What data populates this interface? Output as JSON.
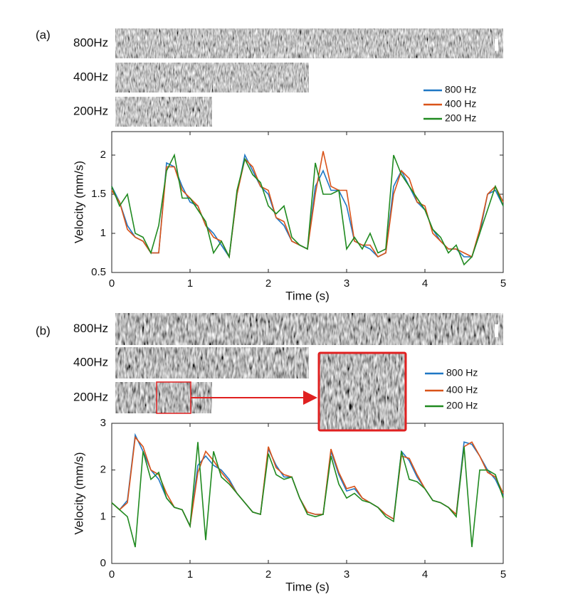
{
  "chart_data": [
    {
      "type": "line",
      "panel_label": "(a)",
      "kymograph_labels": [
        "800Hz",
        "400Hz",
        "200Hz"
      ],
      "xlabel": "Time (s)",
      "ylabel": "Velocity (mm/s)",
      "xlim": [
        0,
        5
      ],
      "ylim": [
        0.5,
        2.3
      ],
      "xticks": [
        0,
        1,
        2,
        3,
        4,
        5
      ],
      "yticks": [
        0.5,
        1,
        1.5,
        2
      ],
      "x": [
        0,
        0.1,
        0.2,
        0.3,
        0.4,
        0.5,
        0.6,
        0.7,
        0.8,
        0.9,
        1,
        1.1,
        1.2,
        1.3,
        1.4,
        1.5,
        1.6,
        1.7,
        1.8,
        1.9,
        2,
        2.1,
        2.2,
        2.3,
        2.4,
        2.5,
        2.6,
        2.7,
        2.8,
        2.9,
        3,
        3.1,
        3.2,
        3.3,
        3.4,
        3.5,
        3.6,
        3.7,
        3.8,
        3.9,
        4,
        4.1,
        4.2,
        4.3,
        4.4,
        4.5,
        4.6,
        4.7,
        4.8,
        4.9,
        5
      ],
      "series": [
        {
          "name": "800 Hz",
          "color": "#1f77c4",
          "values": [
            1.6,
            1.4,
            1.1,
            0.95,
            0.9,
            0.75,
            0.75,
            1.9,
            1.85,
            1.6,
            1.4,
            1.35,
            1.1,
            1.0,
            0.85,
            0.7,
            1.5,
            2.0,
            1.8,
            1.6,
            1.5,
            1.2,
            1.1,
            0.9,
            0.85,
            0.8,
            1.6,
            1.8,
            1.55,
            1.55,
            1.35,
            0.9,
            0.85,
            0.8,
            0.7,
            0.75,
            1.6,
            1.8,
            1.6,
            1.4,
            1.3,
            1.05,
            0.9,
            0.8,
            0.8,
            0.7,
            0.7,
            1.0,
            1.5,
            1.55,
            1.35
          ]
        },
        {
          "name": "400 Hz",
          "color": "#d95319",
          "values": [
            1.55,
            1.4,
            1.05,
            0.95,
            0.9,
            0.75,
            0.75,
            1.85,
            1.85,
            1.55,
            1.45,
            1.35,
            1.1,
            0.95,
            0.9,
            0.7,
            1.5,
            1.95,
            1.85,
            1.6,
            1.55,
            1.2,
            1.15,
            0.9,
            0.85,
            0.8,
            1.5,
            2.05,
            1.6,
            1.55,
            1.55,
            0.9,
            0.85,
            0.85,
            0.7,
            0.75,
            1.5,
            1.8,
            1.7,
            1.4,
            1.35,
            1.0,
            0.9,
            0.8,
            0.8,
            0.75,
            0.7,
            1.05,
            1.5,
            1.6,
            1.4
          ]
        },
        {
          "name": "200 Hz",
          "color": "#208a20",
          "values": [
            1.6,
            1.35,
            1.5,
            1.0,
            0.95,
            0.75,
            1.1,
            1.8,
            2.0,
            1.45,
            1.45,
            1.3,
            1.15,
            0.75,
            0.9,
            0.7,
            1.55,
            1.95,
            1.75,
            1.65,
            1.35,
            1.25,
            1.35,
            0.95,
            0.85,
            0.8,
            1.9,
            1.5,
            1.5,
            1.55,
            0.8,
            0.95,
            0.8,
            1.0,
            0.75,
            0.8,
            2.0,
            1.75,
            1.6,
            1.45,
            1.3,
            1.05,
            0.95,
            0.75,
            0.85,
            0.6,
            0.7,
            1.0,
            1.3,
            1.6,
            1.35
          ]
        }
      ]
    },
    {
      "type": "line",
      "panel_label": "(b)",
      "kymograph_labels": [
        "800Hz",
        "400Hz",
        "200Hz"
      ],
      "xlabel": "Time (s)",
      "ylabel": "Velocity (mm/s)",
      "xlim": [
        0,
        5
      ],
      "ylim": [
        0,
        3
      ],
      "xticks": [
        0,
        1,
        2,
        3,
        4,
        5
      ],
      "yticks": [
        0,
        1,
        2,
        3
      ],
      "x": [
        0,
        0.1,
        0.2,
        0.3,
        0.4,
        0.5,
        0.6,
        0.7,
        0.8,
        0.9,
        1,
        1.1,
        1.2,
        1.3,
        1.4,
        1.5,
        1.6,
        1.7,
        1.8,
        1.9,
        2,
        2.1,
        2.2,
        2.3,
        2.4,
        2.5,
        2.6,
        2.7,
        2.8,
        2.9,
        3,
        3.1,
        3.2,
        3.3,
        3.4,
        3.5,
        3.6,
        3.7,
        3.8,
        3.9,
        4,
        4.1,
        4.2,
        4.3,
        4.4,
        4.5,
        4.6,
        4.7,
        4.8,
        4.9,
        5
      ],
      "series": [
        {
          "name": "800 Hz",
          "color": "#1f77c4",
          "values": [
            1.3,
            1.15,
            1.35,
            2.75,
            2.4,
            2.0,
            1.8,
            1.4,
            1.2,
            1.15,
            0.8,
            2.1,
            2.3,
            2.1,
            2.0,
            1.8,
            1.5,
            1.3,
            1.1,
            1.05,
            2.45,
            2.1,
            1.85,
            1.85,
            1.4,
            1.1,
            1.05,
            1.05,
            2.4,
            1.9,
            1.55,
            1.6,
            1.4,
            1.3,
            1.2,
            1.05,
            0.95,
            2.4,
            2.2,
            1.85,
            1.6,
            1.35,
            1.3,
            1.2,
            1.05,
            2.6,
            2.55,
            2.3,
            2.0,
            1.8,
            1.45
          ]
        },
        {
          "name": "400 Hz",
          "color": "#d95319",
          "values": [
            1.3,
            1.15,
            1.3,
            2.7,
            2.5,
            2.0,
            1.9,
            1.5,
            1.2,
            1.15,
            0.8,
            1.95,
            2.4,
            2.2,
            1.95,
            1.75,
            1.5,
            1.3,
            1.1,
            1.05,
            2.5,
            2.05,
            1.9,
            1.85,
            1.4,
            1.1,
            1.05,
            1.05,
            2.45,
            1.95,
            1.6,
            1.65,
            1.4,
            1.3,
            1.2,
            1.05,
            0.95,
            2.3,
            2.25,
            1.9,
            1.6,
            1.35,
            1.3,
            1.2,
            1.05,
            2.5,
            2.6,
            2.3,
            1.95,
            1.85,
            1.5
          ]
        },
        {
          "name": "200 Hz",
          "color": "#208a20",
          "values": [
            1.3,
            1.15,
            1.0,
            0.35,
            2.4,
            1.8,
            1.95,
            1.4,
            1.2,
            1.15,
            0.8,
            2.6,
            0.5,
            2.4,
            1.85,
            1.7,
            1.5,
            1.3,
            1.1,
            1.05,
            2.35,
            1.9,
            1.8,
            1.85,
            1.4,
            1.05,
            1.0,
            1.05,
            2.3,
            1.7,
            1.4,
            1.5,
            1.35,
            1.3,
            1.2,
            1.0,
            0.9,
            2.4,
            1.8,
            1.75,
            1.6,
            1.35,
            1.3,
            1.2,
            1.0,
            2.5,
            0.35,
            2.0,
            2.0,
            1.9,
            1.4
          ]
        }
      ]
    }
  ]
}
